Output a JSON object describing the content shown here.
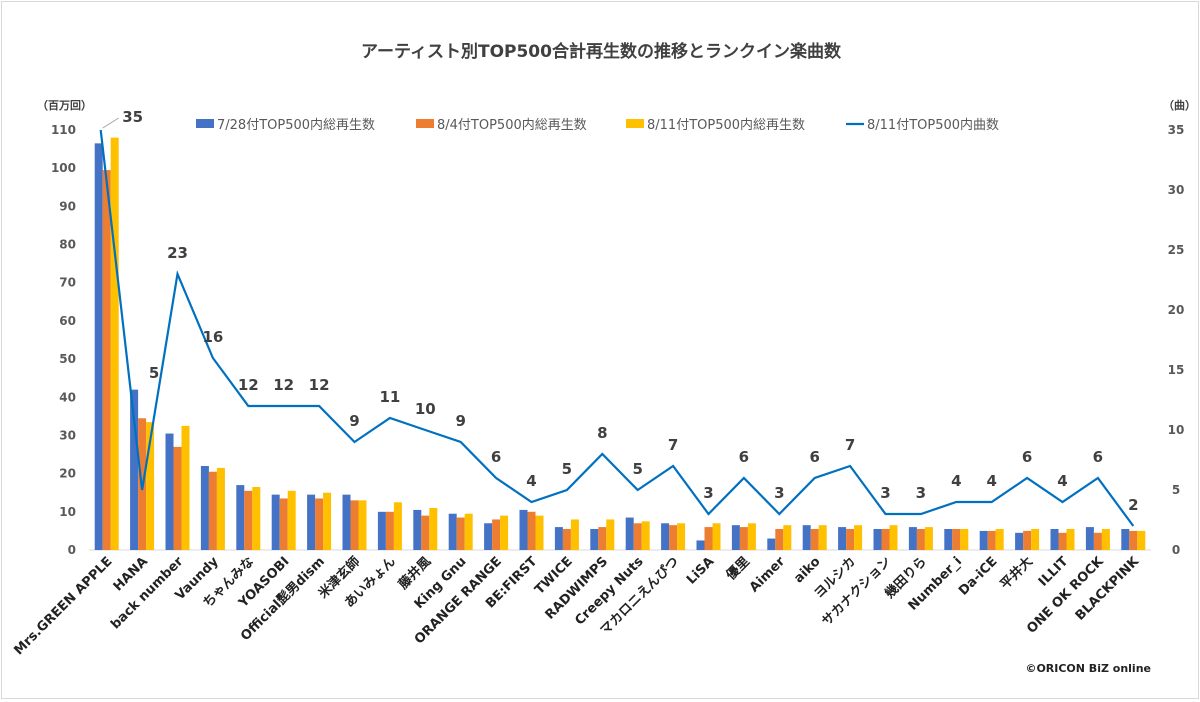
{
  "chart_data": {
    "type": "bar",
    "title": "アーティスト別TOP500合計再生数の推移とランクイン楽曲数",
    "ylabel": "（百万回）",
    "y2label": "（曲）",
    "ylim": [
      0,
      110
    ],
    "yticks": [
      0,
      10,
      20,
      30,
      40,
      50,
      60,
      70,
      80,
      90,
      100,
      110
    ],
    "y2lim": [
      0,
      35
    ],
    "y2ticks": [
      0,
      5,
      10,
      15,
      20,
      25,
      30,
      35
    ],
    "legend_position": "top",
    "grid": false,
    "credit": "©ORICON BiZ online",
    "categories": [
      "Mrs.GREEN APPLE",
      "HANA",
      "back number",
      "Vaundy",
      "ちゃんみな",
      "YOASOBI",
      "Official髭男dism",
      "米津玄師",
      "あいみょん",
      "藤井風",
      "King Gnu",
      "ORANGE RANGE",
      "BE:FIRST",
      "TWICE",
      "RADWIMPS",
      "Creepy Nuts",
      "マカロニえんぴつ",
      "LiSA",
      "優里",
      "Aimer",
      "aiko",
      "ヨルシカ",
      "サカナクション",
      "幾田りら",
      "Number_i",
      "Da-iCE",
      "平井大",
      "ILLIT",
      "ONE OK ROCK",
      "BLACKPINK"
    ],
    "series": [
      {
        "name": "7/28付TOP500内総再生数",
        "type": "bar",
        "axis": "left",
        "color": "#4472c4",
        "values": [
          106.5,
          42,
          30.5,
          22,
          17,
          14.5,
          14.5,
          14.5,
          10,
          10.5,
          9.5,
          7,
          10.5,
          6,
          5.5,
          8.5,
          7,
          2.5,
          6.5,
          3,
          6.5,
          6,
          5.5,
          6,
          5.5,
          5,
          4.5,
          5.5,
          6,
          5.5
        ]
      },
      {
        "name": "8/4付TOP500内総再生数",
        "type": "bar",
        "axis": "left",
        "color": "#ed7d31",
        "values": [
          99.5,
          34.5,
          27,
          20.5,
          15.5,
          13.5,
          13.5,
          13,
          10,
          9,
          8.5,
          8,
          10,
          5.5,
          6,
          7,
          6.5,
          6,
          6,
          5.5,
          5.5,
          5.5,
          5.5,
          5.5,
          5.5,
          5,
          5,
          4.5,
          4.5,
          5
        ]
      },
      {
        "name": "8/11付TOP500内総再生数",
        "type": "bar",
        "axis": "left",
        "color": "#ffc000",
        "values": [
          108,
          33.5,
          32.5,
          21.5,
          16.5,
          15.5,
          15,
          13,
          12.5,
          11,
          9.5,
          9,
          9,
          8,
          8,
          7.5,
          7,
          7,
          7,
          6.5,
          6.5,
          6.5,
          6.5,
          6,
          5.5,
          5.5,
          5.5,
          5.5,
          5.5,
          5
        ]
      },
      {
        "name": "8/11付TOP500内曲数",
        "type": "line",
        "axis": "right",
        "color": "#0070c0",
        "values": [
          35,
          5,
          23,
          16,
          12,
          12,
          12,
          9,
          11,
          10,
          9,
          6,
          4,
          5,
          8,
          5,
          7,
          3,
          6,
          3,
          6,
          7,
          3,
          3,
          4,
          4,
          6,
          4,
          6,
          2
        ]
      }
    ]
  }
}
